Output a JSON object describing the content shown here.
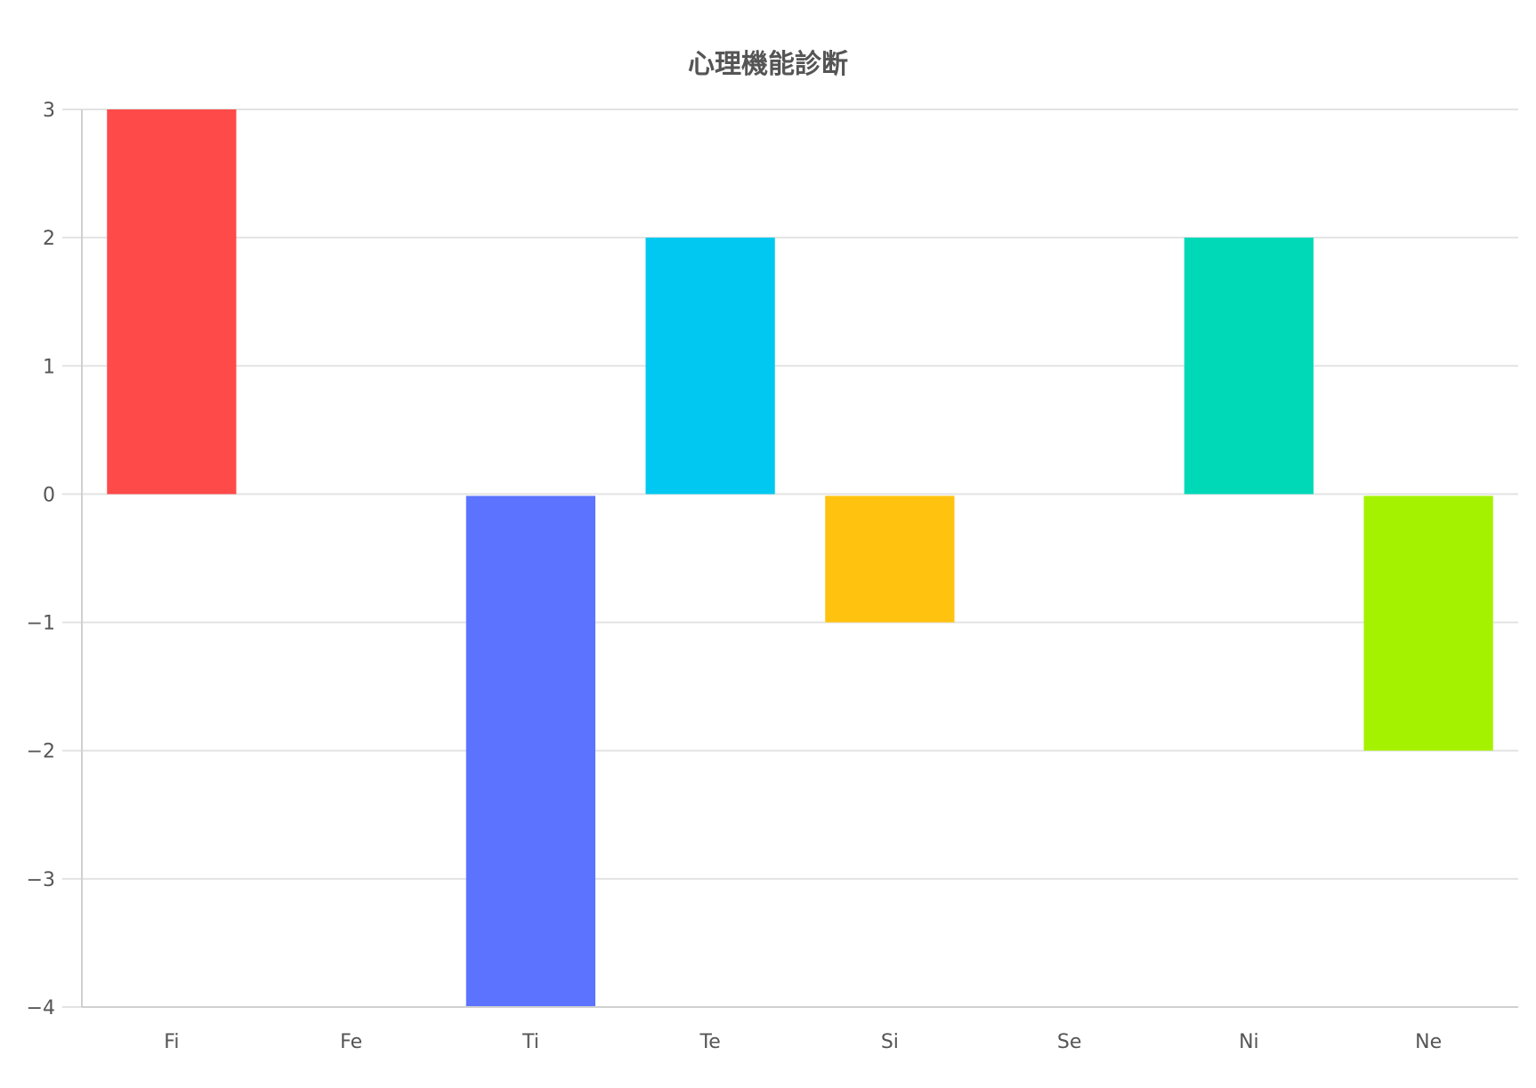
{
  "chart_data": {
    "type": "bar",
    "title": "心理機能診断",
    "categories": [
      "Fi",
      "Fe",
      "Ti",
      "Te",
      "Si",
      "Se",
      "Ni",
      "Ne"
    ],
    "series": [
      {
        "values": [
          3,
          0,
          -4,
          2,
          -1,
          0,
          2,
          -2
        ]
      }
    ],
    "colors": [
      "#ff4a4a",
      "#ff8a3d",
      "#5b73ff",
      "#00c8f0",
      "#ffc20e",
      "#9b59b6",
      "#00d9b8",
      "#a4f200"
    ],
    "ylim": [
      -4,
      3
    ],
    "yticks": [
      3,
      2,
      1,
      0,
      -1,
      -2,
      -3,
      -4
    ],
    "ytick_labels": [
      "3",
      "2",
      "1",
      "0",
      "−1",
      "−2",
      "−3",
      "−4"
    ],
    "xlabel": "",
    "ylabel": "",
    "grid": true,
    "legend": "none"
  }
}
